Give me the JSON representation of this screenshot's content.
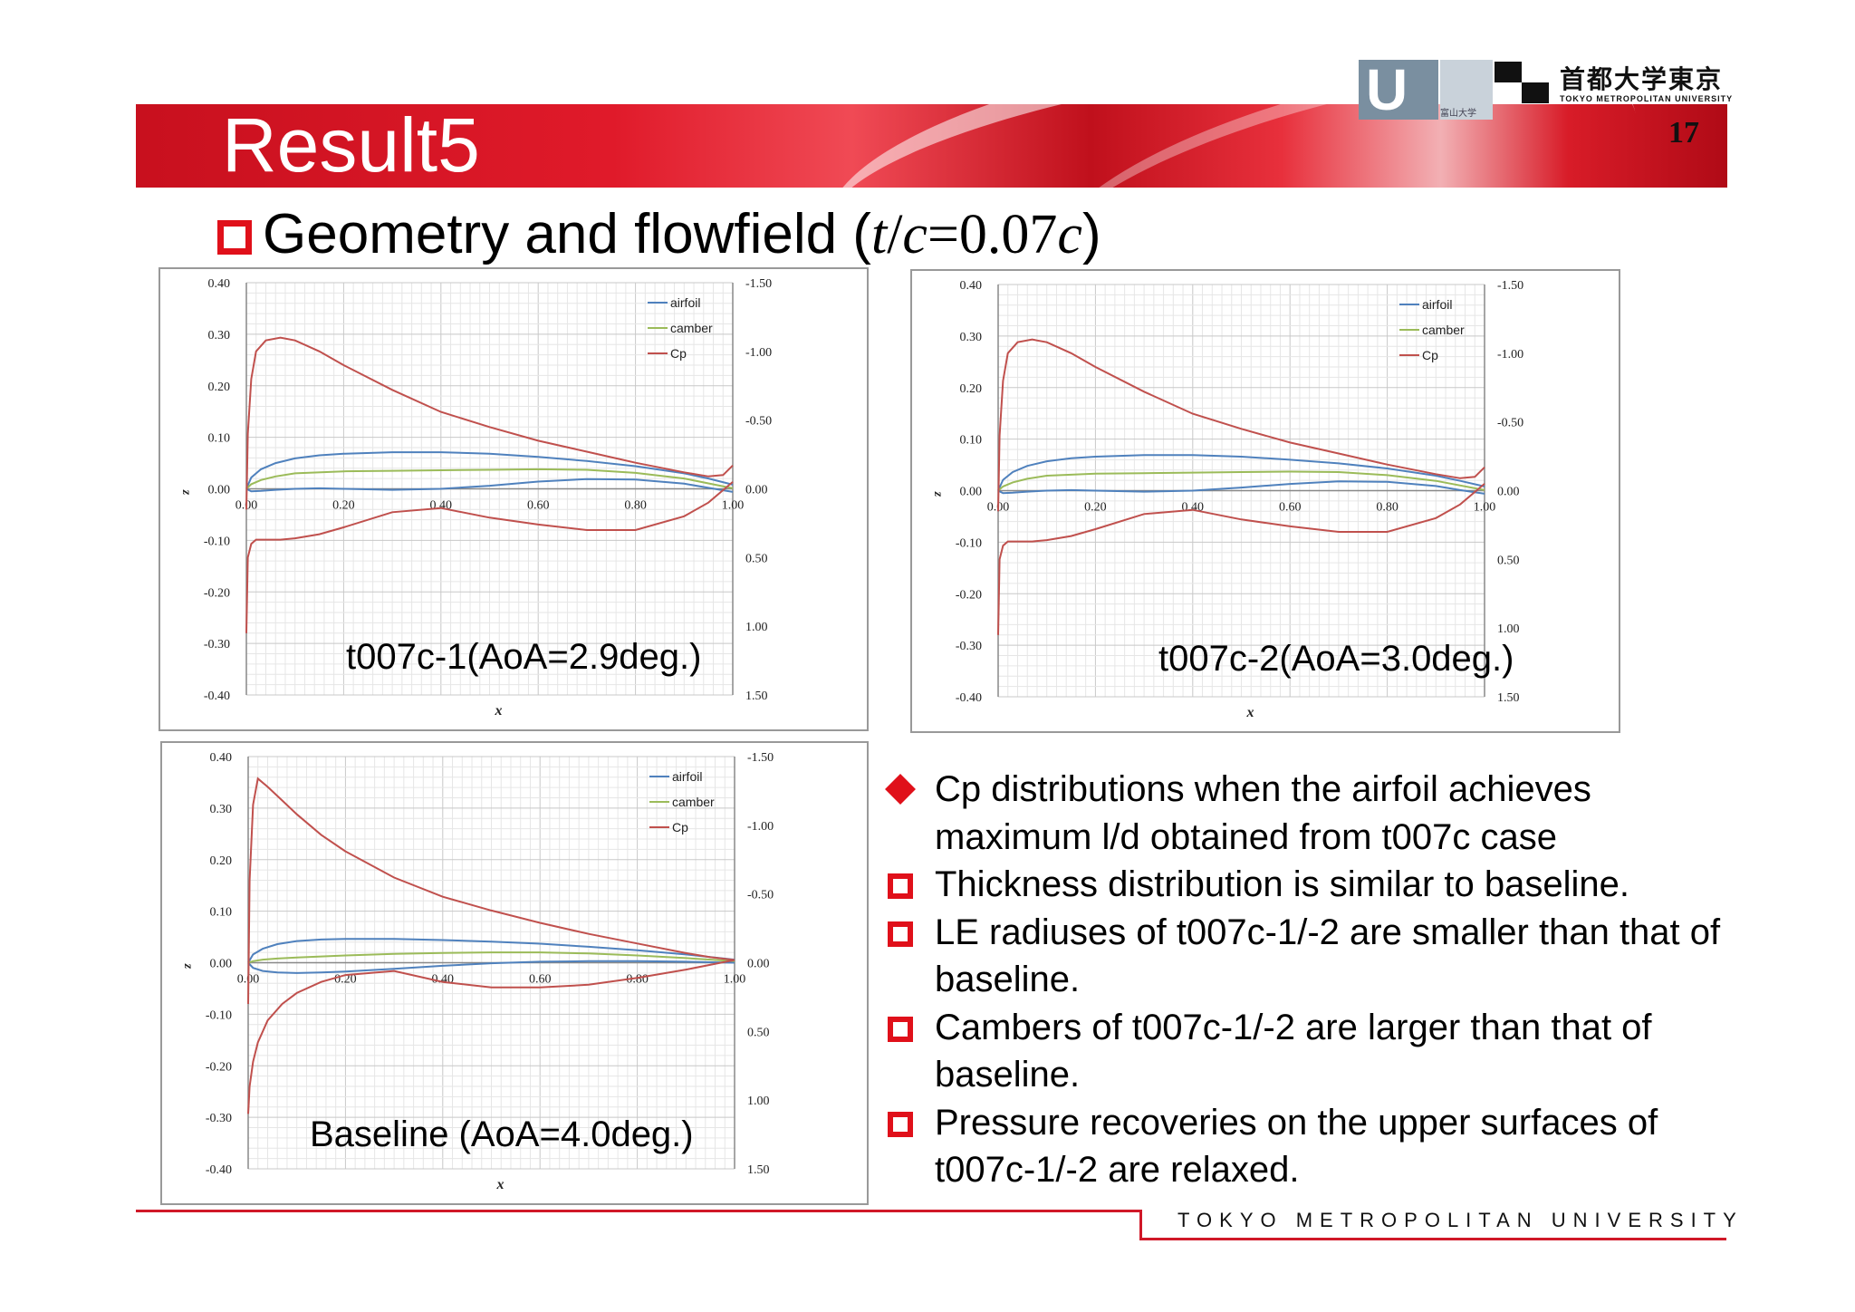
{
  "slide": {
    "title": "Result5",
    "page_number": "17",
    "subtitle_text": "Geometry and flowfield (",
    "subtitle_math_t": "t",
    "subtitle_math_slash": "/",
    "subtitle_math_c": "c",
    "subtitle_math_eq": "=0.07",
    "subtitle_math_c2": "c",
    "subtitle_close": ")",
    "footer": "TOKYO METROPOLITAN UNIVERSITY"
  },
  "logos": {
    "japanese_name": "首都大学東京",
    "english_name": "TOKYO METROPOLITAN UNIVERSITY",
    "left_logo_small": "富山大学"
  },
  "bullets": [
    {
      "marker": "diamond",
      "text": "Cp distributions when the airfoil achieves maximum l/d obtained from t007c case"
    },
    {
      "marker": "square",
      "text": "Thickness distribution is similar to baseline."
    },
    {
      "marker": "square",
      "text": "LE radiuses of t007c-1/-2 are smaller than that of baseline."
    },
    {
      "marker": "square",
      "text": "Cambers of t007c-1/-2 are larger than that of baseline."
    },
    {
      "marker": "square",
      "text": "Pressure recoveries on the upper surfaces of t007c-1/-2 are relaxed."
    }
  ],
  "colors": {
    "airfoil": "#4f81bd",
    "camber": "#9bbb59",
    "cp": "#c0504d",
    "accent": "#e0101a"
  },
  "chart_data": [
    {
      "type": "line",
      "caption": "t007c-1(AoA=2.9deg.)",
      "xlabel": "x",
      "ylabel": "z",
      "xlim": [
        0,
        1
      ],
      "ylim": [
        -0.4,
        0.4
      ],
      "y2lim": [
        1.5,
        -1.5
      ],
      "xticks": [
        "0.00",
        "0.20",
        "0.40",
        "0.60",
        "0.80",
        "1.00"
      ],
      "yticks": [
        "0.40",
        "0.30",
        "0.20",
        "0.10",
        "0.00",
        "-0.10",
        "-0.20",
        "-0.30",
        "-0.40"
      ],
      "y2ticks": [
        "-1.50",
        "-1.00",
        "-0.50",
        "0.00",
        "0.50",
        "1.00",
        "1.50"
      ],
      "legend": [
        "airfoil",
        "camber",
        "Cp"
      ],
      "series": [
        {
          "name": "airfoil",
          "axis": "left",
          "x": [
            0,
            0.01,
            0.03,
            0.06,
            0.1,
            0.15,
            0.2,
            0.3,
            0.4,
            0.5,
            0.6,
            0.7,
            0.8,
            0.9,
            0.95,
            1.0
          ],
          "y": [
            0,
            0.022,
            0.038,
            0.05,
            0.059,
            0.065,
            0.068,
            0.071,
            0.071,
            0.068,
            0.062,
            0.054,
            0.044,
            0.03,
            0.02,
            0.008
          ]
        },
        {
          "name": "airfoil",
          "axis": "left",
          "x": [
            0,
            0.01,
            0.03,
            0.06,
            0.1,
            0.15,
            0.2,
            0.3,
            0.4,
            0.5,
            0.6,
            0.7,
            0.8,
            0.9,
            0.95,
            1.0
          ],
          "y": [
            0,
            -0.005,
            -0.004,
            -0.002,
            0.0,
            0.001,
            0.0,
            -0.002,
            0.0,
            0.006,
            0.014,
            0.019,
            0.018,
            0.01,
            0.002,
            -0.006
          ]
        },
        {
          "name": "camber",
          "axis": "left",
          "x": [
            0,
            0.01,
            0.03,
            0.06,
            0.1,
            0.2,
            0.3,
            0.4,
            0.5,
            0.6,
            0.7,
            0.8,
            0.9,
            1.0
          ],
          "y": [
            0,
            0.009,
            0.017,
            0.024,
            0.03,
            0.034,
            0.035,
            0.036,
            0.037,
            0.038,
            0.037,
            0.031,
            0.02,
            0.001
          ]
        },
        {
          "name": "Cp",
          "axis": "right",
          "x": [
            0,
            0.003,
            0.01,
            0.02,
            0.04,
            0.07,
            0.1,
            0.15,
            0.2,
            0.3,
            0.4,
            0.5,
            0.6,
            0.7,
            0.8,
            0.9,
            0.95,
            0.98,
            1.0
          ],
          "y": [
            0.15,
            -0.4,
            -0.8,
            -1.0,
            -1.08,
            -1.1,
            -1.08,
            -1.0,
            -0.9,
            -0.72,
            -0.56,
            -0.45,
            -0.35,
            -0.27,
            -0.19,
            -0.12,
            -0.09,
            -0.1,
            -0.17
          ]
        },
        {
          "name": "Cp",
          "axis": "right",
          "x": [
            0,
            0.003,
            0.01,
            0.02,
            0.04,
            0.07,
            0.1,
            0.15,
            0.2,
            0.3,
            0.4,
            0.5,
            0.6,
            0.7,
            0.8,
            0.9,
            0.95,
            1.0
          ],
          "y": [
            1.05,
            0.5,
            0.4,
            0.37,
            0.37,
            0.37,
            0.36,
            0.33,
            0.28,
            0.17,
            0.14,
            0.21,
            0.26,
            0.3,
            0.3,
            0.2,
            0.1,
            -0.05
          ]
        }
      ]
    },
    {
      "type": "line",
      "caption": "t007c-2(AoA=3.0deg.)",
      "xlabel": "x",
      "ylabel": "z",
      "xlim": [
        0,
        1
      ],
      "ylim": [
        -0.4,
        0.4
      ],
      "y2lim": [
        1.5,
        -1.5
      ],
      "xticks": [
        "0.00",
        "0.20",
        "0.40",
        "0.60",
        "0.80",
        "1.00"
      ],
      "yticks": [
        "0.40",
        "0.30",
        "0.20",
        "0.10",
        "0.00",
        "-0.10",
        "-0.20",
        "-0.30",
        "-0.40"
      ],
      "y2ticks": [
        "-1.50",
        "-1.00",
        "-0.50",
        "0.00",
        "0.50",
        "1.00",
        "1.50"
      ],
      "legend": [
        "airfoil",
        "camber",
        "Cp"
      ],
      "series": [
        {
          "name": "airfoil",
          "axis": "left",
          "x": [
            0,
            0.01,
            0.03,
            0.06,
            0.1,
            0.15,
            0.2,
            0.3,
            0.4,
            0.5,
            0.6,
            0.7,
            0.8,
            0.9,
            0.95,
            1.0
          ],
          "y": [
            0,
            0.021,
            0.036,
            0.048,
            0.057,
            0.063,
            0.066,
            0.069,
            0.069,
            0.066,
            0.06,
            0.053,
            0.043,
            0.029,
            0.019,
            0.008
          ]
        },
        {
          "name": "airfoil",
          "axis": "left",
          "x": [
            0,
            0.01,
            0.03,
            0.06,
            0.1,
            0.15,
            0.2,
            0.3,
            0.4,
            0.5,
            0.6,
            0.7,
            0.8,
            0.9,
            0.95,
            1.0
          ],
          "y": [
            0,
            -0.005,
            -0.004,
            -0.002,
            0.0,
            0.001,
            0.0,
            -0.002,
            0.0,
            0.006,
            0.013,
            0.018,
            0.017,
            0.009,
            0.001,
            -0.006
          ]
        },
        {
          "name": "camber",
          "axis": "left",
          "x": [
            0,
            0.01,
            0.03,
            0.06,
            0.1,
            0.2,
            0.3,
            0.4,
            0.5,
            0.6,
            0.7,
            0.8,
            0.9,
            1.0
          ],
          "y": [
            0,
            0.008,
            0.016,
            0.023,
            0.029,
            0.033,
            0.034,
            0.035,
            0.036,
            0.037,
            0.036,
            0.03,
            0.019,
            0.001
          ]
        },
        {
          "name": "Cp",
          "axis": "right",
          "x": [
            0,
            0.003,
            0.01,
            0.02,
            0.04,
            0.07,
            0.1,
            0.15,
            0.2,
            0.3,
            0.4,
            0.5,
            0.6,
            0.7,
            0.8,
            0.9,
            0.95,
            0.98,
            1.0
          ],
          "y": [
            0.15,
            -0.4,
            -0.8,
            -1.0,
            -1.08,
            -1.1,
            -1.08,
            -1.0,
            -0.9,
            -0.72,
            -0.56,
            -0.45,
            -0.35,
            -0.27,
            -0.19,
            -0.12,
            -0.09,
            -0.1,
            -0.17
          ]
        },
        {
          "name": "Cp",
          "axis": "right",
          "x": [
            0,
            0.003,
            0.01,
            0.02,
            0.04,
            0.07,
            0.1,
            0.15,
            0.2,
            0.3,
            0.4,
            0.5,
            0.6,
            0.7,
            0.8,
            0.9,
            0.95,
            1.0
          ],
          "y": [
            1.05,
            0.5,
            0.4,
            0.37,
            0.37,
            0.37,
            0.36,
            0.33,
            0.28,
            0.17,
            0.14,
            0.21,
            0.26,
            0.3,
            0.3,
            0.2,
            0.1,
            -0.05
          ]
        }
      ]
    },
    {
      "type": "line",
      "caption": "Baseline (AoA=4.0deg.)",
      "xlabel": "x",
      "ylabel": "z",
      "xlim": [
        0,
        1
      ],
      "ylim": [
        -0.4,
        0.4
      ],
      "y2lim": [
        1.5,
        -1.5
      ],
      "xticks": [
        "0.00",
        "0.20",
        "0.40",
        "0.60",
        "0.80",
        "1.00"
      ],
      "yticks": [
        "0.40",
        "0.30",
        "0.20",
        "0.10",
        "0.00",
        "-0.10",
        "-0.20",
        "-0.30",
        "-0.40"
      ],
      "y2ticks": [
        "-1.50",
        "-1.00",
        "-0.50",
        "0.00",
        "0.50",
        "1.00",
        "1.50"
      ],
      "legend": [
        "airfoil",
        "camber",
        "Cp"
      ],
      "series": [
        {
          "name": "airfoil",
          "axis": "left",
          "x": [
            0,
            0.01,
            0.03,
            0.06,
            0.1,
            0.15,
            0.2,
            0.3,
            0.4,
            0.5,
            0.6,
            0.7,
            0.8,
            0.9,
            1.0
          ],
          "y": [
            0,
            0.016,
            0.027,
            0.036,
            0.042,
            0.045,
            0.046,
            0.046,
            0.044,
            0.041,
            0.037,
            0.031,
            0.024,
            0.016,
            0.006
          ]
        },
        {
          "name": "airfoil",
          "axis": "left",
          "x": [
            0,
            0.01,
            0.03,
            0.06,
            0.1,
            0.15,
            0.2,
            0.3,
            0.4,
            0.5,
            0.6,
            0.7,
            0.8,
            0.9,
            1.0
          ],
          "y": [
            0,
            -0.01,
            -0.016,
            -0.019,
            -0.02,
            -0.019,
            -0.017,
            -0.012,
            -0.006,
            -0.001,
            0.002,
            0.003,
            0.003,
            0.002,
            0.0
          ]
        },
        {
          "name": "camber",
          "axis": "left",
          "x": [
            0,
            0.01,
            0.03,
            0.06,
            0.1,
            0.2,
            0.3,
            0.4,
            0.5,
            0.6,
            0.7,
            0.8,
            0.9,
            1.0
          ],
          "y": [
            0,
            0.003,
            0.006,
            0.008,
            0.01,
            0.014,
            0.017,
            0.019,
            0.02,
            0.02,
            0.018,
            0.014,
            0.009,
            0.003
          ]
        },
        {
          "name": "Cp",
          "axis": "right",
          "x": [
            0,
            0.003,
            0.01,
            0.02,
            0.04,
            0.07,
            0.1,
            0.15,
            0.2,
            0.3,
            0.4,
            0.5,
            0.6,
            0.7,
            0.8,
            0.9,
            0.95,
            1.0
          ],
          "y": [
            0.3,
            -0.6,
            -1.15,
            -1.34,
            -1.28,
            -1.18,
            -1.08,
            -0.93,
            -0.81,
            -0.62,
            -0.48,
            -0.38,
            -0.29,
            -0.21,
            -0.14,
            -0.07,
            -0.04,
            -0.02
          ]
        },
        {
          "name": "Cp",
          "axis": "right",
          "x": [
            0,
            0.003,
            0.01,
            0.02,
            0.04,
            0.07,
            0.1,
            0.15,
            0.2,
            0.3,
            0.4,
            0.5,
            0.6,
            0.7,
            0.8,
            0.9,
            1.0
          ],
          "y": [
            1.1,
            0.9,
            0.72,
            0.58,
            0.42,
            0.3,
            0.22,
            0.14,
            0.09,
            0.06,
            0.14,
            0.18,
            0.18,
            0.16,
            0.11,
            0.05,
            -0.02
          ]
        }
      ]
    }
  ]
}
